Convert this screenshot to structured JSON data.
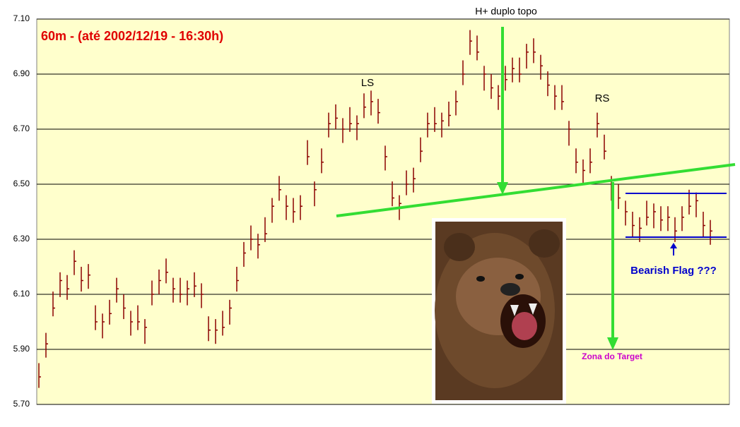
{
  "chart_data": {
    "type": "ohlc",
    "title": "60m - (até 2002/12/19 - 16:30h)",
    "annotations": [
      "H+ duplo topo",
      "LS",
      "RS",
      "Bearish Flag ???",
      "Zona do Target"
    ],
    "color": "#8b0000",
    "grid": true,
    "ylim": [
      5.7,
      7.1
    ],
    "yticks": [
      {
        "value": 5.7,
        "label": "5.70"
      },
      {
        "value": 5.9,
        "label": "5.90"
      },
      {
        "value": 6.1,
        "label": "6.10"
      },
      {
        "value": 6.3,
        "label": "6.30"
      },
      {
        "value": 6.5,
        "label": "6.50"
      },
      {
        "value": 6.7,
        "label": "6.70"
      },
      {
        "value": 6.9,
        "label": "6.90"
      },
      {
        "value": 7.1,
        "label": "7.10"
      }
    ],
    "high": [
      5.85,
      5.96,
      6.11,
      6.18,
      6.17,
      6.26,
      6.2,
      6.21,
      6.06,
      6.03,
      6.08,
      6.16,
      6.1,
      6.04,
      6.06,
      6.01,
      6.15,
      6.19,
      6.23,
      6.16,
      6.16,
      6.15,
      6.18,
      6.14,
      6.02,
      6.01,
      6.04,
      6.08,
      6.2,
      6.29,
      6.35,
      6.32,
      6.38,
      6.45,
      6.53,
      6.46,
      6.45,
      6.46,
      6.66,
      6.51,
      6.63,
      6.76,
      6.79,
      6.74,
      6.78,
      6.75,
      6.83,
      6.84,
      6.81,
      6.64,
      6.51,
      6.46,
      6.55,
      6.56,
      6.67,
      6.76,
      6.78,
      6.76,
      6.8,
      6.84,
      6.95,
      7.06,
      7.04,
      6.93,
      6.9,
      6.86,
      6.93,
      6.96,
      6.96,
      7.01,
      7.03,
      6.97,
      6.91,
      6.86,
      6.86,
      6.73,
      6.63,
      6.59,
      6.63,
      6.76,
      6.68,
      6.53,
      6.5,
      6.44,
      6.4,
      6.38,
      6.44,
      6.43,
      6.42,
      6.42,
      6.38,
      6.42,
      6.48,
      6.47,
      6.4,
      6.37
    ],
    "low": [
      5.76,
      5.87,
      6.02,
      6.09,
      6.08,
      6.17,
      6.11,
      6.12,
      5.97,
      5.94,
      5.99,
      6.07,
      6.01,
      5.95,
      5.97,
      5.92,
      6.06,
      6.1,
      6.14,
      6.07,
      6.07,
      6.06,
      6.09,
      6.05,
      5.93,
      5.92,
      5.95,
      5.99,
      6.11,
      6.2,
      6.26,
      6.23,
      6.29,
      6.36,
      6.44,
      6.37,
      6.36,
      6.37,
      6.57,
      6.42,
      6.54,
      6.67,
      6.7,
      6.65,
      6.69,
      6.66,
      6.74,
      6.75,
      6.72,
      6.55,
      6.42,
      6.37,
      6.46,
      6.47,
      6.58,
      6.67,
      6.69,
      6.67,
      6.71,
      6.75,
      6.86,
      6.97,
      6.95,
      6.84,
      6.81,
      6.77,
      6.84,
      6.87,
      6.87,
      6.92,
      6.94,
      6.88,
      6.82,
      6.77,
      6.77,
      6.64,
      6.54,
      6.5,
      6.54,
      6.67,
      6.59,
      6.44,
      6.41,
      6.35,
      6.31,
      6.29,
      6.35,
      6.34,
      6.33,
      6.33,
      6.29,
      6.33,
      6.39,
      6.38,
      6.31,
      6.28
    ],
    "close": [
      5.8,
      5.92,
      6.05,
      6.15,
      6.12,
      6.22,
      6.15,
      6.17,
      6.0,
      6.0,
      6.03,
      6.12,
      6.05,
      6.0,
      6.0,
      5.98,
      6.1,
      6.15,
      6.18,
      6.12,
      6.1,
      6.12,
      6.13,
      6.1,
      5.97,
      5.97,
      5.98,
      6.05,
      6.15,
      6.25,
      6.3,
      6.28,
      6.32,
      6.42,
      6.48,
      6.42,
      6.4,
      6.42,
      6.6,
      6.48,
      6.58,
      6.72,
      6.74,
      6.7,
      6.72,
      6.72,
      6.78,
      6.8,
      6.76,
      6.6,
      6.45,
      6.43,
      6.5,
      6.52,
      6.62,
      6.72,
      6.72,
      6.73,
      6.75,
      6.8,
      6.9,
      7.02,
      6.98,
      6.9,
      6.85,
      6.82,
      6.88,
      6.92,
      6.9,
      6.98,
      6.98,
      6.93,
      6.86,
      6.82,
      6.8,
      6.7,
      6.58,
      6.55,
      6.58,
      6.72,
      6.62,
      6.5,
      6.45,
      6.4,
      6.35,
      6.34,
      6.38,
      6.4,
      6.37,
      6.38,
      6.33,
      6.38,
      6.42,
      6.44,
      6.35,
      6.33
    ]
  }
}
